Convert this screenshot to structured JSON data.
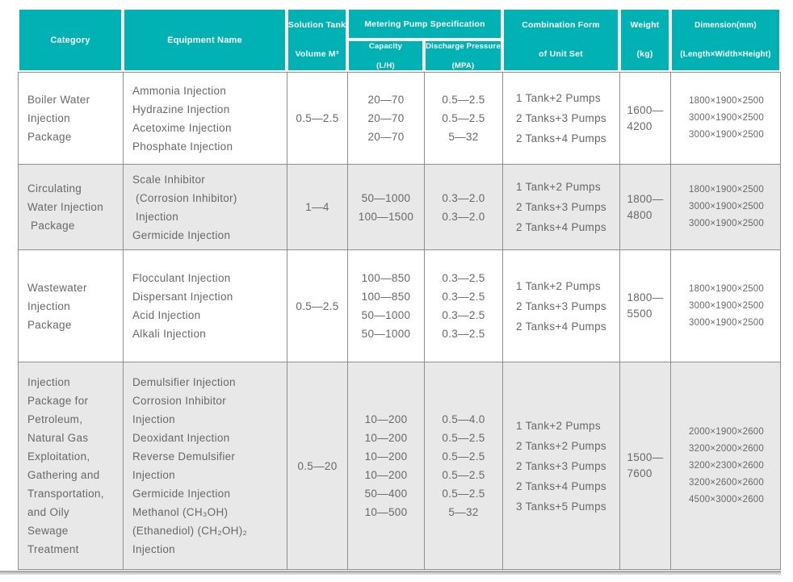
{
  "colors": {
    "header_bg": "#00b2b3",
    "header_text": "#ffffff",
    "border": "#8f8f8f",
    "alt_row_bg": "#e8e8e8",
    "body_text": "#686868"
  },
  "header": {
    "category": "Category",
    "equipment_name": "Equipment Name",
    "solution_tank": [
      "Solution Tank",
      "Volume M³"
    ],
    "metering_pump_spec": "Metering Pump Specification",
    "capacity": [
      "Capacity",
      "(L/H)"
    ],
    "discharge_pressure": [
      "Discharge Pressure",
      "(MPA)"
    ],
    "combination_form": [
      "Combination Form",
      "of Unit Set"
    ],
    "weight": [
      "Weight",
      "(kg)"
    ],
    "dimension": [
      "Dimension(mm)",
      "(Length×Width×Height)"
    ]
  },
  "rows": [
    {
      "category": [
        "Boiler Water",
        "Injection",
        "Package"
      ],
      "equipment": [
        "Ammonia Injection",
        "Hydrazine Injection",
        "Acetoxime Injection",
        "Phosphate Injection"
      ],
      "tank_volume": "0.5—2.5",
      "capacity": [
        "20—70",
        "20—70",
        "20—70"
      ],
      "discharge": [
        "0.5—2.5",
        "0.5—2.5",
        "5—32"
      ],
      "combination": [
        "1 Tank+2 Pumps",
        "2 Tanks+3 Pumps",
        "2 Tanks+4 Pumps"
      ],
      "weight": [
        "1600—",
        "4200"
      ],
      "dimension": [
        "1800×1900×2500",
        "3000×1900×2500",
        "3000×1900×2500"
      ]
    },
    {
      "category": [
        "Circulating",
        "Water Injection",
        " Package"
      ],
      "equipment": [
        "Scale Inhibitor",
        " (Corrosion Inhibitor)",
        " Injection",
        "Germicide Injection"
      ],
      "tank_volume": "1—4",
      "capacity": [
        "50—1000",
        "100—1500"
      ],
      "discharge": [
        "0.3—2.0",
        "0.3—2.0"
      ],
      "combination": [
        "1 Tank+2 Pumps",
        "2 Tanks+3 Pumps",
        "2 Tanks+4 Pumps"
      ],
      "weight": [
        "1800—",
        "4800"
      ],
      "dimension": [
        "1800×1900×2500",
        "3000×1900×2500",
        "3000×1900×2500"
      ]
    },
    {
      "category": [
        "Wastewater",
        "Injection",
        "Package"
      ],
      "equipment": [
        "Flocculant Injection",
        "Dispersant Injection",
        "Acid Injection",
        "Alkali Injection"
      ],
      "tank_volume": "0.5—2.5",
      "capacity": [
        "100—850",
        "100—850",
        "50—1000",
        "50—1000"
      ],
      "discharge": [
        "0.3—2.5",
        "0.3—2.5",
        "0.3—2.5",
        "0.3—2.5"
      ],
      "combination": [
        "1 Tank+2 Pumps",
        "2 Tanks+3 Pumps",
        "2 Tanks+4 Pumps"
      ],
      "weight": [
        "1800—",
        "5500"
      ],
      "dimension": [
        "1800×1900×2500",
        "3000×1900×2500",
        "3000×1900×2500"
      ]
    },
    {
      "category": [
        "Injection",
        "Package for",
        "Petroleum,",
        "Natural Gas",
        "Exploitation,",
        "Gathering and",
        "Transportation,",
        "and Oily",
        "Sewage",
        "Treatment"
      ],
      "equipment": [
        "Demulsifier Injection",
        "Corrosion Inhibitor",
        "Injection",
        "Deoxidant Injection",
        "Reverse Demulsifier",
        "Injection",
        "Germicide Injection",
        "Methanol (CH₃OH)",
        "(Ethanediol) (CH₂OH)₂",
        "Injection"
      ],
      "tank_volume": "0.5—20",
      "capacity": [
        "10—200",
        "10—200",
        "10—200",
        "10—200",
        "50—400",
        "10—500"
      ],
      "discharge": [
        "0.5—4.0",
        "0.5—2.5",
        "0.5—2.5",
        "0.5—2.5",
        "0.5—2.5",
        "5—32"
      ],
      "combination": [
        "1 Tank+2 Pumps",
        "2 Tanks+2 Pumps",
        "2 Tanks+3 Pumps",
        "2 Tanks+4 Pumps",
        "3 Tanks+5 Pumps"
      ],
      "weight": [
        "1500—",
        "7600"
      ],
      "dimension": [
        "2000×1900×2600",
        "3200×2000×2600",
        "3200×2300×2600",
        "3200×2600×2600",
        "4500×3000×2600"
      ]
    }
  ]
}
